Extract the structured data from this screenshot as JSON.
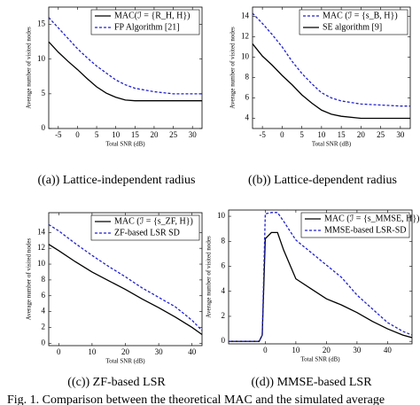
{
  "chart_data": [
    {
      "type": "line",
      "caption": "((a)) Lattice-independent radius",
      "xlabel": "Total SNR (dB)",
      "ylabel": "Average number of visited nodes",
      "x": [
        -7.5,
        -5,
        -2.5,
        0,
        2.5,
        5,
        7.5,
        10,
        12.5,
        15,
        20,
        25,
        30,
        32.5
      ],
      "series": [
        {
          "name": "MAC(ℐ = {R_H, H})",
          "color": "#000000",
          "style": "solid",
          "values": [
            12.5,
            11,
            9.7,
            8.5,
            7.2,
            6,
            5.1,
            4.5,
            4.1,
            4,
            4,
            4,
            4,
            4
          ]
        },
        {
          "name": "FP Algorithm [21]",
          "color": "#2020d0",
          "style": "dashed",
          "values": [
            16,
            14.5,
            13,
            11.5,
            10.2,
            9,
            8,
            7,
            6.3,
            5.8,
            5.3,
            5,
            5,
            5
          ]
        }
      ],
      "xlim": [
        -7.5,
        32.5
      ],
      "xticks": [
        -5,
        0,
        5,
        10,
        15,
        20,
        25,
        30
      ],
      "ylim": [
        0,
        17.5
      ],
      "yticks": [
        0,
        5,
        10,
        15
      ],
      "legend": "upper right"
    },
    {
      "type": "line",
      "caption": "((b)) Lattice-dependent radius",
      "xlabel": "Total SNR (dB)",
      "ylabel": "Average number of visited nodes",
      "x": [
        -7.5,
        -5,
        -2.5,
        0,
        2.5,
        5,
        7.5,
        10,
        12.5,
        15,
        20,
        25,
        30,
        32.5
      ],
      "series": [
        {
          "name": "MAC (ℐ = {s_B, H})",
          "color": "#2020d0",
          "style": "dashed",
          "values": [
            14.3,
            13.3,
            12.2,
            11,
            9.6,
            8.4,
            7.4,
            6.5,
            6,
            5.7,
            5.4,
            5.3,
            5.2,
            5.2
          ]
        },
        {
          "name": "SE algorithm [9]",
          "color": "#000000",
          "style": "solid",
          "values": [
            11.3,
            10.1,
            9.2,
            8.2,
            7.3,
            6.3,
            5.5,
            4.8,
            4.4,
            4.2,
            4,
            4,
            4,
            4
          ]
        }
      ],
      "xlim": [
        -7.5,
        32.5
      ],
      "xticks": [
        -5,
        0,
        5,
        10,
        15,
        20,
        25,
        30
      ],
      "ylim": [
        3,
        14.9
      ],
      "yticks": [
        4,
        6,
        8,
        10,
        12,
        14
      ],
      "legend": "upper right"
    },
    {
      "type": "line",
      "caption": "((c)) ZF-based LSR",
      "xlabel": "Total SNR (dB)",
      "ylabel": "Average number of visited nodes",
      "x": [
        -3,
        0,
        5,
        10,
        15,
        20,
        25,
        30,
        35,
        40,
        43
      ],
      "series": [
        {
          "name": "MAC (ℐ = {s_ZF, H})",
          "color": "#000000",
          "style": "solid",
          "values": [
            12.5,
            11.7,
            10.3,
            9,
            7.9,
            6.8,
            5.6,
            4.5,
            3.3,
            2,
            1.1
          ]
        },
        {
          "name": "ZF-based LSR SD",
          "color": "#2020d0",
          "style": "dashed",
          "values": [
            15,
            14.2,
            12.6,
            11.1,
            9.7,
            8.4,
            7,
            5.8,
            4.6,
            2.9,
            1.6
          ]
        }
      ],
      "xlim": [
        -3,
        43
      ],
      "xticks": [
        0,
        10,
        20,
        30,
        40
      ],
      "ylim": [
        -0.3,
        16.5
      ],
      "yticks": [
        0,
        2,
        4,
        6,
        8,
        10,
        12,
        14
      ],
      "legend": "upper right"
    },
    {
      "type": "line",
      "caption": "((d)) MMSE-based LSR",
      "xlabel": "Total SNR (dB)",
      "ylabel": "Average number of visited nodes",
      "x": [
        -12,
        -2,
        -1,
        0,
        2,
        4,
        6,
        10,
        15,
        20,
        25,
        30,
        35,
        40,
        45,
        48
      ],
      "series": [
        {
          "name": "MAC (ℐ = {s_MMSE, H})",
          "color": "#000000",
          "style": "solid",
          "values": [
            0,
            0,
            0.5,
            8.2,
            8.7,
            8.7,
            7.3,
            5,
            4.2,
            3.4,
            2.9,
            2.3,
            1.6,
            1,
            0.5,
            0.3
          ]
        },
        {
          "name": "MMSE-based LSR-SD",
          "color": "#2020d0",
          "style": "dashed",
          "values": [
            0,
            0,
            0.5,
            10.2,
            10.3,
            10.3,
            9.6,
            8.1,
            7.1,
            6.1,
            5.1,
            3.7,
            2.6,
            1.5,
            0.8,
            0.5
          ]
        }
      ],
      "xlim": [
        -12,
        48
      ],
      "xticks": [
        0,
        10,
        20,
        30,
        40
      ],
      "ylim": [
        -0.2,
        10.5
      ],
      "yticks": [
        0,
        2,
        4,
        6,
        8,
        10
      ],
      "legend": "upper right"
    }
  ],
  "figure_caption": "Fig. 1.   Comparison between the theoretical MAC and the simulated average"
}
